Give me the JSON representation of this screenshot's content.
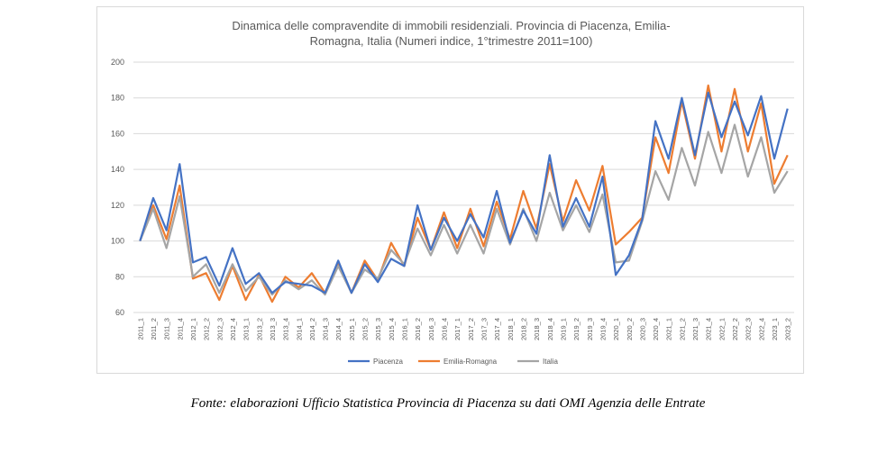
{
  "chart_data": {
    "type": "line",
    "title_line1": "Dinamica delle compravendite di immobili residenziali. Provincia di Piacenza, Emilia-",
    "title_line2": "Romagna, Italia (Numeri indice, 1°trimestre 2011=100)",
    "ylim": [
      60,
      200
    ],
    "yticks": [
      60,
      80,
      100,
      120,
      140,
      160,
      180,
      200
    ],
    "grid": "horizontal",
    "legend_position": "bottom",
    "x": [
      "2011_1",
      "2011_2",
      "2011_3",
      "2011_4",
      "2012_1",
      "2012_2",
      "2012_3",
      "2012_4",
      "2013_1",
      "2013_2",
      "2013_3",
      "2013_4",
      "2014_1",
      "2014_2",
      "2014_3",
      "2014_4",
      "2015_1",
      "2015_2",
      "2015_3",
      "2015_4",
      "2016_1",
      "2016_2",
      "2016_3",
      "2016_4",
      "2017_1",
      "2017_2",
      "2017_3",
      "2017_4",
      "2018_1",
      "2018_2",
      "2018_3",
      "2018_4",
      "2019_1",
      "2019_2",
      "2019_3",
      "2019_4",
      "2020_1",
      "2020_2",
      "2020_3",
      "2020_4",
      "2021_1",
      "2021_2",
      "2021_3",
      "2021_4",
      "2022_1",
      "2022_2",
      "2022_3",
      "2022_4",
      "2023_1",
      "2023_2"
    ],
    "series": [
      {
        "name": "Piacenza",
        "color": "#4472c4",
        "values": [
          100,
          124,
          106,
          143,
          88,
          91,
          75,
          96,
          76,
          82,
          71,
          77,
          76,
          75,
          71,
          89,
          71,
          87,
          77,
          90,
          86,
          120,
          95,
          113,
          100,
          115,
          102,
          128,
          99,
          117,
          104,
          148,
          108,
          124,
          108,
          136,
          81,
          92,
          112,
          167,
          146,
          180,
          148,
          183,
          158,
          178,
          159,
          181,
          146,
          174
        ]
      },
      {
        "name": "Emilia-Romagna",
        "color": "#ed7d31",
        "values": [
          100,
          120,
          101,
          131,
          79,
          82,
          67,
          86,
          67,
          81,
          66,
          80,
          74,
          82,
          71,
          87,
          71,
          89,
          78,
          99,
          86,
          113,
          95,
          116,
          96,
          118,
          97,
          122,
          101,
          128,
          107,
          143,
          111,
          134,
          117,
          142,
          98,
          105,
          113,
          158,
          138,
          178,
          146,
          187,
          150,
          185,
          150,
          177,
          132,
          148
        ]
      },
      {
        "name": "Italia",
        "color": "#a5a5a5",
        "values": [
          100,
          118,
          96,
          125,
          80,
          87,
          71,
          87,
          72,
          80,
          70,
          78,
          73,
          78,
          70,
          86,
          71,
          84,
          79,
          95,
          87,
          107,
          92,
          109,
          93,
          109,
          93,
          118,
          98,
          118,
          100,
          127,
          106,
          120,
          105,
          126,
          88,
          89,
          111,
          139,
          123,
          152,
          131,
          161,
          138,
          165,
          136,
          158,
          127,
          139
        ]
      }
    ]
  },
  "source": "Fonte: elaborazioni Ufficio Statistica Provincia di Piacenza su dati OMI Agenzia delle Entrate"
}
